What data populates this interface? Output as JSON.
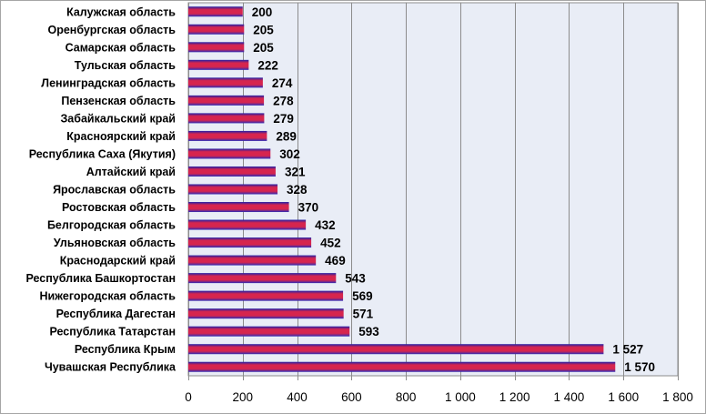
{
  "chart_data": {
    "type": "bar",
    "orientation": "horizontal",
    "categories": [
      "Калужская область",
      "Оренбургская область",
      "Самарская область",
      "Тульская область",
      "Ленинградская область",
      "Пензенская область",
      "Забайкальский край",
      "Красноярский край",
      "Республика Саха (Якутия)",
      "Алтайский край",
      "Ярославская область",
      "Ростовская область",
      "Белгородская область",
      "Ульяновская область",
      "Краснодарский край",
      "Республика Башкортостан",
      "Нижегородская область",
      "Республика Дагестан",
      "Республика Татарстан",
      "Республика Крым",
      "Чувашская Республика"
    ],
    "values": [
      200,
      205,
      205,
      222,
      274,
      278,
      279,
      289,
      302,
      321,
      328,
      370,
      432,
      452,
      469,
      543,
      569,
      571,
      593,
      1527,
      1570
    ],
    "value_labels": [
      "200",
      "205",
      "205",
      "222",
      "274",
      "278",
      "279",
      "289",
      "302",
      "321",
      "328",
      "370",
      "432",
      "452",
      "469",
      "543",
      "569",
      "571",
      "593",
      "1 527",
      "1 570"
    ],
    "xlim": [
      0,
      1800
    ],
    "x_ticks": [
      0,
      200,
      400,
      600,
      800,
      1000,
      1200,
      1400,
      1600,
      1800
    ],
    "x_tick_labels": [
      "0",
      "200",
      "400",
      "600",
      "800",
      "1 000",
      "1 200",
      "1 400",
      "1 600",
      "1 800"
    ],
    "title": "",
    "xlabel": "",
    "ylabel": "",
    "grid": "vertical",
    "legend": "none",
    "colors": {
      "plot_background": "#e9edf6",
      "gridline": "#8c8c8c",
      "bar_top": "#1f1fa8",
      "bar_mid": "#d6254e",
      "bar_bottom": "#2a2ab8"
    }
  }
}
